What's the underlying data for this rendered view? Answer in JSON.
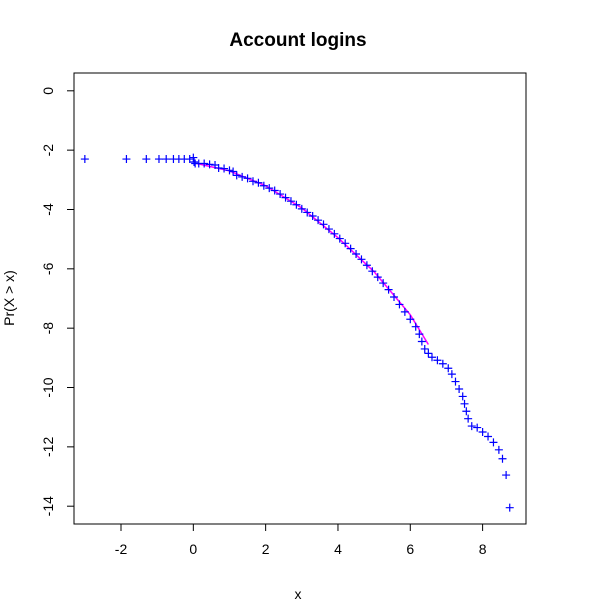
{
  "chart_data": {
    "type": "scatter",
    "title": "Account logins",
    "xlabel": "x",
    "ylabel": "Pr(X > x)",
    "xlim": [
      -3.3,
      9.2
    ],
    "ylim": [
      -14.6,
      0.6
    ],
    "x_ticks": [
      -2,
      0,
      2,
      4,
      6,
      8
    ],
    "y_ticks": [
      0,
      -2,
      -4,
      -6,
      -8,
      -10,
      -12,
      -14
    ],
    "x_tick_labels": [
      "-2",
      "0",
      "2",
      "4",
      "6",
      "8"
    ],
    "y_tick_labels": [
      "0",
      "-2",
      "-4",
      "-6",
      "-8",
      "-10",
      "-12",
      "-14"
    ],
    "grid": false,
    "legend": "none",
    "marker": "+",
    "colors": {
      "points": "#0000ff",
      "fit_line": "#ff00ff"
    },
    "series": [
      {
        "values": [
          [
            -3.0,
            -2.3
          ],
          [
            -1.85,
            -2.3
          ],
          [
            -1.3,
            -2.3
          ],
          [
            -0.95,
            -2.3
          ],
          [
            -0.75,
            -2.3
          ],
          [
            -0.55,
            -2.3
          ],
          [
            -0.4,
            -2.3
          ],
          [
            -0.25,
            -2.3
          ],
          [
            -0.1,
            -2.3
          ],
          [
            0.0,
            -2.25
          ],
          [
            0.02,
            -2.4
          ],
          [
            0.05,
            -2.45
          ],
          [
            0.15,
            -2.45
          ],
          [
            0.3,
            -2.45
          ],
          [
            0.45,
            -2.48
          ],
          [
            0.6,
            -2.5
          ],
          [
            0.7,
            -2.6
          ],
          [
            0.85,
            -2.62
          ],
          [
            1.0,
            -2.68
          ],
          [
            1.1,
            -2.72
          ],
          [
            1.2,
            -2.85
          ],
          [
            1.35,
            -2.9
          ],
          [
            1.5,
            -2.95
          ],
          [
            1.65,
            -3.05
          ],
          [
            1.8,
            -3.1
          ],
          [
            1.95,
            -3.2
          ],
          [
            2.1,
            -3.28
          ],
          [
            2.25,
            -3.36
          ],
          [
            2.4,
            -3.48
          ],
          [
            2.55,
            -3.6
          ],
          [
            2.7,
            -3.72
          ],
          [
            2.85,
            -3.84
          ],
          [
            3.0,
            -3.98
          ],
          [
            3.15,
            -4.1
          ],
          [
            3.3,
            -4.22
          ],
          [
            3.45,
            -4.36
          ],
          [
            3.6,
            -4.5
          ],
          [
            3.75,
            -4.66
          ],
          [
            3.9,
            -4.82
          ],
          [
            4.05,
            -4.98
          ],
          [
            4.2,
            -5.14
          ],
          [
            4.35,
            -5.32
          ],
          [
            4.5,
            -5.5
          ],
          [
            4.65,
            -5.68
          ],
          [
            4.8,
            -5.88
          ],
          [
            4.95,
            -6.08
          ],
          [
            5.1,
            -6.28
          ],
          [
            5.25,
            -6.48
          ],
          [
            5.4,
            -6.7
          ],
          [
            5.55,
            -6.95
          ],
          [
            5.7,
            -7.2
          ],
          [
            5.85,
            -7.45
          ],
          [
            6.0,
            -7.7
          ],
          [
            6.15,
            -7.95
          ],
          [
            6.25,
            -8.2
          ],
          [
            6.32,
            -8.45
          ],
          [
            6.4,
            -8.7
          ],
          [
            6.5,
            -8.85
          ],
          [
            6.6,
            -8.98
          ],
          [
            6.75,
            -9.08
          ],
          [
            6.9,
            -9.2
          ],
          [
            7.05,
            -9.35
          ],
          [
            7.15,
            -9.55
          ],
          [
            7.25,
            -9.8
          ],
          [
            7.35,
            -10.05
          ],
          [
            7.45,
            -10.3
          ],
          [
            7.5,
            -10.55
          ],
          [
            7.55,
            -10.8
          ],
          [
            7.6,
            -11.05
          ],
          [
            7.7,
            -11.3
          ],
          [
            7.85,
            -11.35
          ],
          [
            8.0,
            -11.5
          ],
          [
            8.15,
            -11.65
          ],
          [
            8.3,
            -11.85
          ],
          [
            8.45,
            -12.1
          ],
          [
            8.55,
            -12.4
          ],
          [
            8.65,
            -12.95
          ],
          [
            8.75,
            -14.05
          ]
        ]
      }
    ],
    "fit_line": [
      [
        0.1,
        -2.45
      ],
      [
        1.0,
        -2.7
      ],
      [
        2.0,
        -3.2
      ],
      [
        3.0,
        -3.95
      ],
      [
        4.0,
        -4.95
      ],
      [
        5.0,
        -6.1
      ],
      [
        6.0,
        -7.55
      ],
      [
        6.5,
        -8.55
      ]
    ]
  }
}
